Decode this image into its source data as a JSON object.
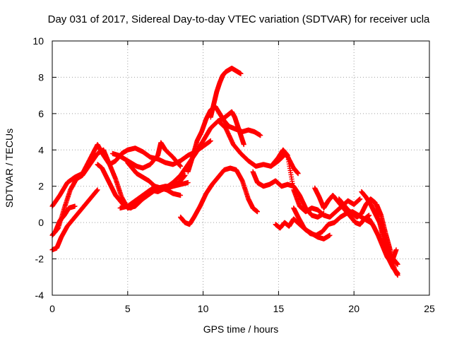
{
  "chart_data": {
    "type": "scatter",
    "title": "Day 031 of 2017, Sidereal Day-to-day VTEC variation (SDTVAR) for receiver ucla",
    "xlabel": "GPS time / hours",
    "ylabel": "SDTVAR / TECUs",
    "xlim": [
      0,
      25
    ],
    "ylim": [
      -4,
      10
    ],
    "xticks": [
      "0",
      "5",
      "10",
      "15",
      "20",
      "25"
    ],
    "yticks": [
      "-4",
      "-2",
      "0",
      "2",
      "4",
      "6",
      "8",
      "10"
    ],
    "grid": true,
    "marker": "plus",
    "color": "#ff0000",
    "series": [
      {
        "name": "track-1",
        "x": [
          0.0,
          0.5,
          1.0,
          1.5,
          2.0,
          2.5,
          3.0,
          3.4,
          3.8,
          4.2,
          4.6,
          5.0,
          5.5,
          6.0,
          6.5,
          7.0,
          7.5,
          8.0,
          8.5,
          9.0,
          9.5,
          10.0,
          10.5
        ],
        "y": [
          0.9,
          1.5,
          2.2,
          2.5,
          2.7,
          3.5,
          4.3,
          3.7,
          3.2,
          3.4,
          3.8,
          4.0,
          4.1,
          3.9,
          3.6,
          3.5,
          3.3,
          3.2,
          3.4,
          3.7,
          3.9,
          4.2,
          4.5
        ]
      },
      {
        "name": "track-2",
        "x": [
          0.0,
          0.4,
          0.8,
          1.2,
          1.6,
          2.0,
          2.5,
          3.0,
          3.4,
          3.8,
          4.2,
          4.6,
          5.0,
          5.5,
          6.0,
          6.5,
          7.0,
          7.5,
          8.0,
          8.5,
          9.0
        ],
        "y": [
          -0.7,
          -0.3,
          0.8,
          1.8,
          2.4,
          2.6,
          3.2,
          3.8,
          4.0,
          3.2,
          2.4,
          1.4,
          0.8,
          0.9,
          1.3,
          1.6,
          1.9,
          2.0,
          2.0,
          2.1,
          2.2
        ]
      },
      {
        "name": "track-3",
        "x": [
          0.0,
          0.3,
          0.6,
          1.0,
          1.5,
          2.0,
          2.5,
          3.0
        ],
        "y": [
          -1.5,
          -1.4,
          -0.8,
          -0.2,
          0.3,
          0.8,
          1.3,
          1.8
        ]
      },
      {
        "name": "track-4",
        "x": [
          0.2,
          0.5,
          0.8,
          1.1,
          1.5
        ],
        "y": [
          -0.5,
          0.1,
          0.4,
          0.8,
          0.9
        ]
      },
      {
        "name": "track-5",
        "x": [
          4.0,
          4.4,
          4.8,
          5.2,
          5.6,
          6.0,
          6.5,
          7.0,
          7.2,
          7.5,
          8.0,
          8.5
        ],
        "y": [
          3.8,
          3.7,
          3.5,
          3.3,
          3.1,
          3.0,
          3.2,
          3.7,
          4.4,
          4.0,
          3.6,
          3.1
        ]
      },
      {
        "name": "track-6",
        "x": [
          4.5,
          5.0,
          5.5,
          6.0,
          6.5,
          7.0,
          7.5,
          8.0,
          8.5,
          9.0,
          9.5,
          10.0,
          10.5,
          11.0,
          11.3,
          11.6,
          11.9,
          12.1,
          12.3,
          12.5,
          12.7
        ],
        "y": [
          0.8,
          0.9,
          1.2,
          1.5,
          1.8,
          1.7,
          1.9,
          2.2,
          2.6,
          3.2,
          3.8,
          4.5,
          5.2,
          5.6,
          5.7,
          5.9,
          6.1,
          5.8,
          5.3,
          4.8,
          4.3
        ]
      },
      {
        "name": "track-7",
        "x": [
          5.0,
          5.3,
          5.6,
          6.0,
          6.4,
          6.8,
          7.2,
          7.6,
          8.0,
          8.4,
          8.8
        ],
        "y": [
          3.3,
          3.0,
          2.7,
          2.5,
          2.3,
          2.0,
          1.8,
          1.9,
          2.0,
          2.2,
          2.6
        ]
      },
      {
        "name": "track-8",
        "x": [
          3.0,
          3.3,
          3.6,
          3.9,
          4.2,
          4.5,
          4.8,
          5.2,
          5.6,
          6.0,
          6.4,
          6.8,
          7.2,
          7.6,
          8.0,
          8.5
        ],
        "y": [
          3.2,
          3.0,
          2.5,
          2.0,
          1.5,
          1.2,
          0.9,
          0.8,
          1.0,
          1.4,
          1.7,
          2.0,
          1.9,
          1.8,
          1.6,
          1.5
        ]
      },
      {
        "name": "track-9",
        "x": [
          8.5,
          8.8,
          9.1,
          9.4,
          9.8,
          10.2,
          10.6,
          11.0,
          11.4,
          11.8,
          12.2,
          12.6,
          13.0,
          13.3,
          13.6
        ],
        "y": [
          0.3,
          0.0,
          -0.1,
          0.3,
          0.9,
          1.6,
          2.1,
          2.5,
          2.9,
          3.0,
          2.9,
          2.3,
          1.3,
          0.8,
          0.6
        ]
      },
      {
        "name": "track-10",
        "x": [
          9.0,
          9.3,
          9.6,
          9.9,
          10.2,
          10.5,
          10.8,
          11.1,
          11.4,
          11.7,
          12.0,
          12.3,
          12.6,
          13.0,
          13.4,
          13.8
        ],
        "y": [
          2.8,
          3.6,
          4.5,
          5.0,
          5.7,
          6.2,
          6.4,
          6.0,
          5.6,
          5.3,
          5.2,
          5.1,
          5.0,
          5.1,
          5.0,
          4.8
        ]
      },
      {
        "name": "track-11",
        "x": [
          10.5,
          10.7,
          10.9,
          11.1,
          11.3,
          11.5,
          11.7,
          11.9,
          12.1,
          12.3,
          12.5
        ],
        "y": [
          5.8,
          6.5,
          7.2,
          7.7,
          8.1,
          8.3,
          8.4,
          8.5,
          8.4,
          8.3,
          8.2
        ]
      },
      {
        "name": "track-12",
        "x": [
          11.0,
          11.5,
          12.0,
          12.5,
          13.0,
          13.5,
          14.0,
          14.5,
          15.0,
          15.5,
          16.0,
          16.3
        ],
        "y": [
          5.6,
          5.2,
          4.3,
          3.8,
          3.4,
          3.1,
          3.2,
          3.1,
          3.4,
          3.8,
          3.0,
          2.7
        ]
      },
      {
        "name": "track-13",
        "x": [
          13.3,
          13.6,
          14.0,
          14.4,
          14.8,
          15.2,
          15.6,
          16.0,
          16.4,
          16.8,
          17.2,
          17.6,
          18.0
        ],
        "y": [
          2.8,
          2.2,
          2.0,
          2.1,
          2.3,
          2.0,
          2.1,
          2.0,
          1.5,
          0.8,
          0.4,
          0.3,
          0.5
        ]
      },
      {
        "name": "track-14",
        "x": [
          14.5,
          15.0,
          15.3,
          15.6,
          16.0,
          16.4,
          16.8,
          17.2,
          17.6,
          18.0,
          18.4,
          18.8,
          19.2,
          19.6,
          20.0,
          20.4
        ],
        "y": [
          3.1,
          3.6,
          4.0,
          3.7,
          1.8,
          0.9,
          0.6,
          0.8,
          0.7,
          0.4,
          0.3,
          0.6,
          0.9,
          1.2,
          1.0,
          1.3
        ]
      },
      {
        "name": "track-15",
        "x": [
          14.8,
          15.1,
          15.4,
          15.7,
          16.0,
          16.4,
          16.8,
          17.2,
          17.6,
          18.0,
          18.4
        ],
        "y": [
          -0.1,
          -0.3,
          0.0,
          -0.2,
          0.2,
          -0.1,
          -0.4,
          -0.6,
          -0.8,
          -0.9,
          -0.7
        ]
      },
      {
        "name": "track-16",
        "x": [
          16.0,
          16.3,
          16.7,
          17.1,
          17.5,
          17.9,
          18.3,
          18.7,
          19.1,
          19.5,
          19.9,
          20.3,
          20.7,
          21.1
        ],
        "y": [
          0.8,
          0.3,
          -0.3,
          -0.6,
          -0.7,
          -0.5,
          -0.1,
          0.0,
          0.3,
          0.5,
          0.6,
          0.4,
          0.2,
          0.0
        ]
      },
      {
        "name": "track-17",
        "x": [
          17.4,
          17.7,
          18.0,
          18.3,
          18.6,
          18.9,
          19.2,
          19.5,
          19.8,
          20.1,
          20.4,
          20.7,
          21.0
        ],
        "y": [
          1.9,
          1.4,
          0.8,
          1.2,
          1.5,
          1.2,
          0.9,
          0.6,
          0.3,
          0.0,
          -0.1,
          0.2,
          0.4
        ]
      },
      {
        "name": "track-18",
        "x": [
          19.0,
          19.3,
          19.6,
          19.9,
          20.2,
          20.5,
          20.8,
          21.1,
          21.4,
          21.7,
          22.0,
          22.3,
          22.6,
          22.9
        ],
        "y": [
          1.3,
          1.0,
          0.7,
          0.5,
          0.3,
          0.5,
          1.0,
          1.3,
          1.1,
          0.0,
          -1.0,
          -1.6,
          -2.0,
          -2.3
        ]
      },
      {
        "name": "track-19",
        "x": [
          20.5,
          20.8,
          21.1,
          21.4,
          21.7,
          22.0,
          22.3,
          22.6,
          22.9
        ],
        "y": [
          1.7,
          1.4,
          1.0,
          0.5,
          0.0,
          -1.0,
          -2.0,
          -2.5,
          -2.8
        ]
      },
      {
        "name": "track-20",
        "x": [
          21.0,
          21.3,
          21.6,
          21.9,
          22.2,
          22.5,
          22.8
        ],
        "y": [
          0.2,
          -0.2,
          -0.7,
          -1.3,
          -1.9,
          -2.2,
          -1.5
        ]
      },
      {
        "name": "track-21",
        "x": [
          21.5,
          21.8,
          22.1,
          22.4,
          22.7,
          22.9
        ],
        "y": [
          1.0,
          0.4,
          -0.6,
          -1.5,
          -2.6,
          -2.9
        ]
      }
    ]
  }
}
